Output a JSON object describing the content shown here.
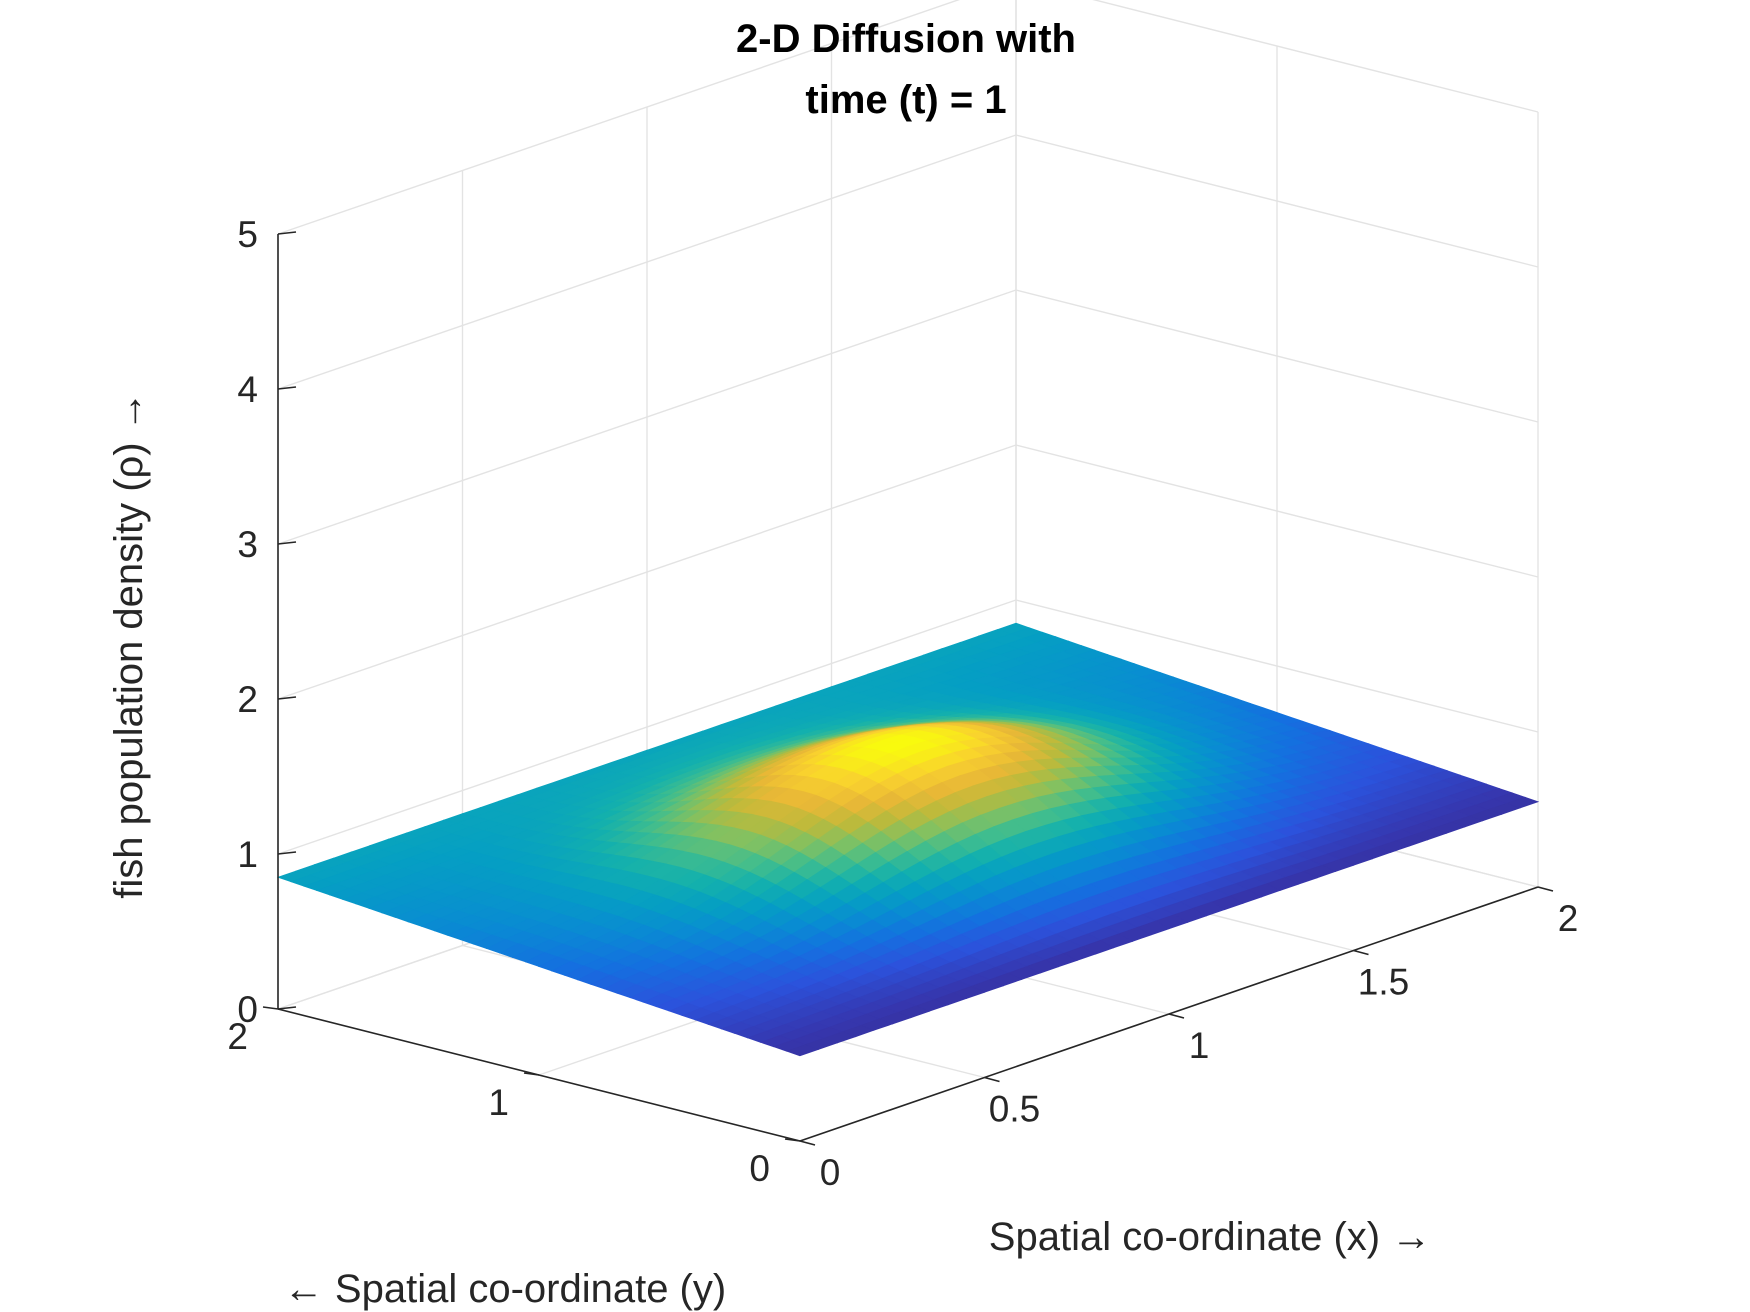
{
  "chart_data": {
    "type": "surface",
    "title_lines": [
      "2-D Diffusion with",
      "time (t) = 1"
    ],
    "xlabel": "Spatial co-ordinate (x) →",
    "ylabel": "← Spatial co-ordinate (y)",
    "zlabel": "fish population density (ρ) →",
    "xlim": [
      0,
      2
    ],
    "ylim": [
      0,
      2
    ],
    "zlim": [
      0,
      5
    ],
    "x_ticks": [
      0,
      0.5,
      1,
      1.5,
      2
    ],
    "x_tick_labels": [
      "0",
      "0.5",
      "1",
      "1.5",
      "2"
    ],
    "y_ticks": [
      0,
      1,
      2
    ],
    "y_tick_labels": [
      "0",
      "1",
      "2"
    ],
    "z_ticks": [
      0,
      1,
      2,
      3,
      4,
      5
    ],
    "z_tick_labels": [
      "0",
      "1",
      "2",
      "3",
      "4",
      "5"
    ],
    "grid": true,
    "colormap": "parula",
    "color_range": [
      0.5,
      1.3
    ],
    "surface": {
      "peak": {
        "x": 1.0,
        "y": 1.0,
        "z": 1.3
      },
      "corners": [
        {
          "x": 0,
          "y": 0,
          "z": 0.55
        },
        {
          "x": 2,
          "y": 0,
          "z": 0.55
        },
        {
          "x": 2,
          "y": 2,
          "z": 0.85
        },
        {
          "x": 0,
          "y": 2,
          "z": 0.85
        }
      ]
    }
  }
}
